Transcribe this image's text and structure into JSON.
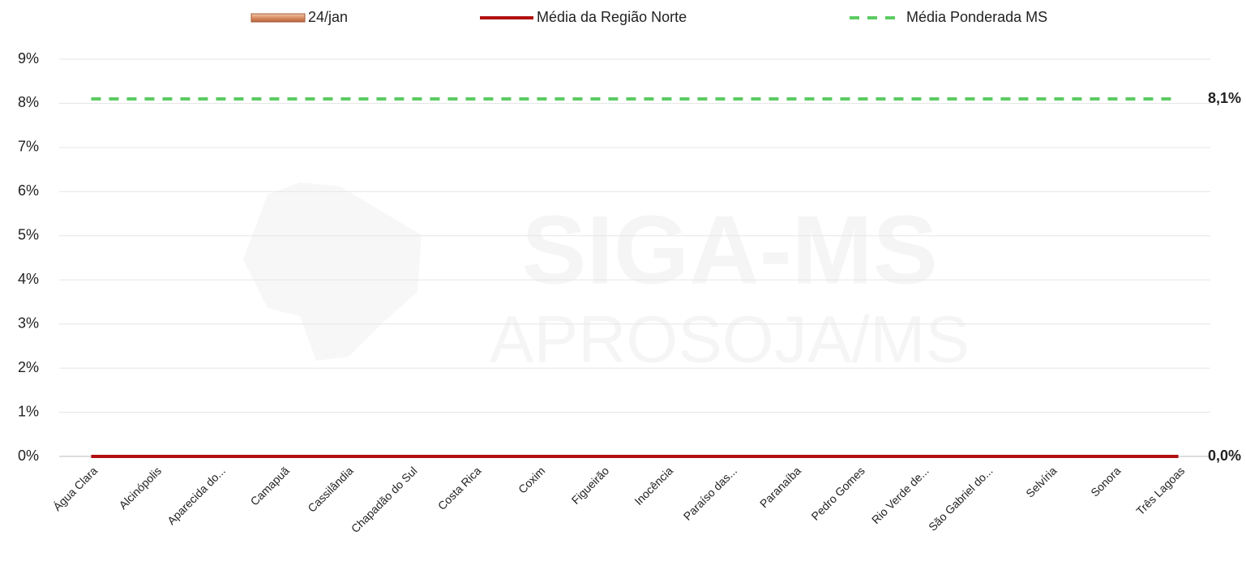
{
  "chart_data": {
    "type": "bar",
    "categories": [
      "Água Clara",
      "Alcinópolis",
      "Aparecida do...",
      "Camapuã",
      "Cassilândia",
      "Chapadão do Sul",
      "Costa Rica",
      "Coxim",
      "Figueirão",
      "Inocência",
      "Paraíso das...",
      "Paranaíba",
      "Pedro Gomes",
      "Rio Verde de...",
      "São Gabriel do...",
      "Selvíria",
      "Sonora",
      "Três Lagoas"
    ],
    "series": [
      {
        "name": "24/jan",
        "color": "#e0a27e",
        "values": [
          0,
          0,
          0,
          0,
          0,
          0,
          0,
          0,
          0,
          0,
          0,
          0,
          0,
          0,
          0,
          0,
          0,
          0
        ]
      }
    ],
    "reference_lines": [
      {
        "name": "Média da Região Norte",
        "color": "#b01010",
        "dashed": false,
        "value": 0,
        "value_label": "0,0%"
      },
      {
        "name": "Média Ponderada MS",
        "color": "#5ccb63",
        "dashed": true,
        "value": 8.1,
        "value_label": "8,1%"
      }
    ],
    "ylim": [
      0,
      9
    ],
    "yticks": [
      {
        "value": 0,
        "label": "0%"
      },
      {
        "value": 1,
        "label": "1%"
      },
      {
        "value": 2,
        "label": "2%"
      },
      {
        "value": 3,
        "label": "3%"
      },
      {
        "value": 4,
        "label": "4%"
      },
      {
        "value": 5,
        "label": "5%"
      },
      {
        "value": 6,
        "label": "6%"
      },
      {
        "value": 7,
        "label": "7%"
      },
      {
        "value": 8,
        "label": "8%"
      },
      {
        "value": 9,
        "label": "9%"
      }
    ],
    "grid": true,
    "legend": "top",
    "watermark": [
      "SIGA-MS",
      "APROSOJA/MS"
    ]
  }
}
